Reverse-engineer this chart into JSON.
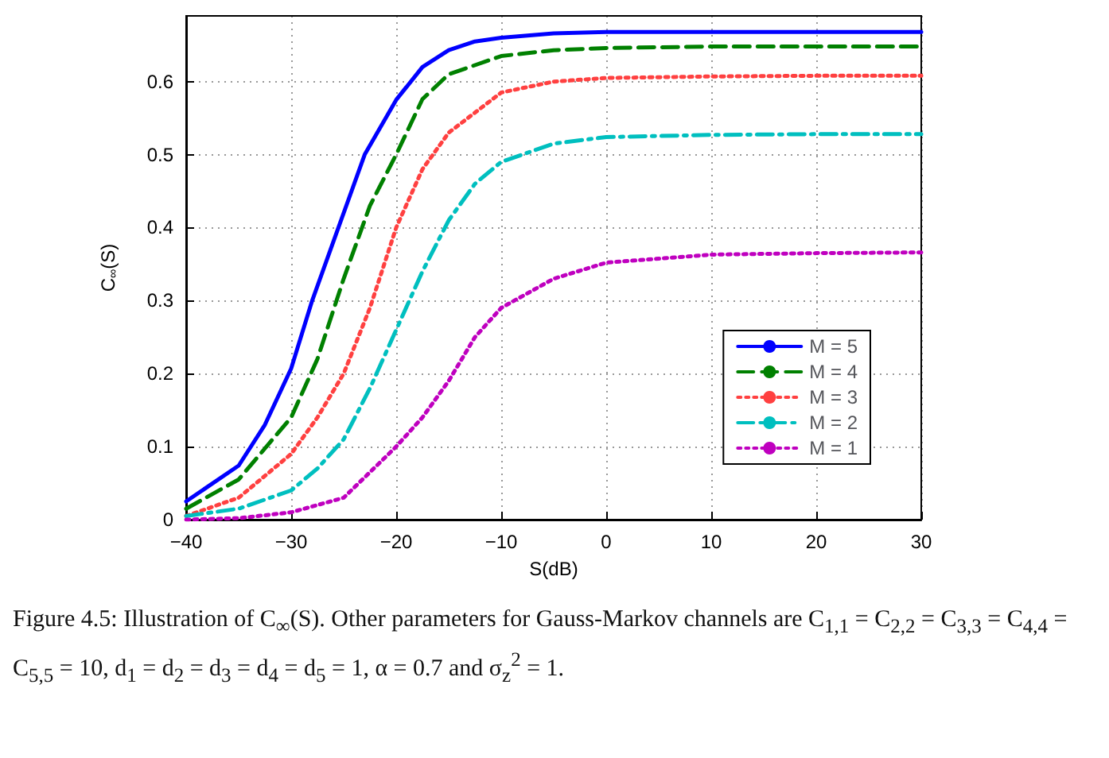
{
  "chart_data": {
    "type": "line",
    "xlabel": "S(dB)",
    "ylabel": "C$_{∞}$(S)",
    "xlim": [
      -40,
      30
    ],
    "xticks": [
      -40,
      -30,
      -20,
      -10,
      0,
      10,
      20,
      30
    ],
    "ylim": [
      0,
      0.69
    ],
    "yticks": [
      0,
      0.1,
      0.2,
      0.3,
      0.4,
      0.5,
      0.6
    ],
    "grid": true,
    "legend": "bottom right",
    "marker": "none",
    "annotations": [
      "Figure 4.5: Illustration of C$_{∞}$(S). Other parameters for Gauss-Markov channels are C$_{1,1}$ = C$_{2,2}$ = C$_{3,3}$ = C$_{4,4}$ = C$_{5,5}$ = 10, d$_{1}$ = d$_{2}$ = d$_{3}$ = d$_{4}$ = d$_{5}$ = 1, α = 0.7 and σ$_{z}$$^{2}$ = 1."
    ],
    "series": [
      {
        "name": "M = 5",
        "color": "#0000ff",
        "line_style": "solid",
        "x": [
          -40,
          -35,
          -32.5,
          -30,
          -28,
          -25.5,
          -23,
          -20,
          -17.5,
          -15,
          -12.5,
          -10,
          -5,
          0,
          10,
          20,
          30
        ],
        "values": [
          0.025,
          0.074,
          0.13,
          0.207,
          0.3,
          0.4,
          0.5,
          0.575,
          0.62,
          0.643,
          0.655,
          0.66,
          0.666,
          0.668,
          0.668,
          0.668,
          0.668
        ]
      },
      {
        "name": "M = 4",
        "color": "#008000",
        "line_style": "dashed",
        "x": [
          -40,
          -35,
          -30,
          -27.5,
          -25,
          -22.5,
          -20,
          -17.5,
          -15,
          -10,
          -5,
          0,
          10,
          20,
          30
        ],
        "values": [
          0.015,
          0.055,
          0.14,
          0.22,
          0.33,
          0.43,
          0.5,
          0.576,
          0.61,
          0.635,
          0.643,
          0.646,
          0.648,
          0.648,
          0.648
        ]
      },
      {
        "name": "M = 3",
        "color": "#ff4040",
        "line_style": "dotted",
        "x": [
          -40,
          -35,
          -30,
          -27.5,
          -25,
          -22.5,
          -20,
          -17.5,
          -15,
          -10,
          -5,
          0,
          10,
          20,
          30
        ],
        "values": [
          0.005,
          0.03,
          0.09,
          0.14,
          0.2,
          0.29,
          0.4,
          0.48,
          0.53,
          0.585,
          0.6,
          0.605,
          0.607,
          0.608,
          0.608
        ]
      },
      {
        "name": "M = 2",
        "color": "#00bfbf",
        "line_style": "dashdot",
        "x": [
          -40,
          -35,
          -30,
          -27.5,
          -25,
          -22.5,
          -20,
          -17.5,
          -15,
          -12.5,
          -10,
          -5,
          0,
          10,
          20,
          30
        ],
        "values": [
          0.005,
          0.015,
          0.04,
          0.07,
          0.11,
          0.18,
          0.26,
          0.34,
          0.41,
          0.46,
          0.49,
          0.515,
          0.524,
          0.527,
          0.528,
          0.528
        ]
      },
      {
        "name": "M = 1",
        "color": "#bf00bf",
        "line_style": "dotted",
        "x": [
          -40,
          -35,
          -30,
          -25,
          -20,
          -17.5,
          -15,
          -12.5,
          -10,
          -5,
          0,
          10,
          20,
          30
        ],
        "values": [
          0,
          0.002,
          0.01,
          0.03,
          0.1,
          0.14,
          0.19,
          0.25,
          0.29,
          0.33,
          0.352,
          0.363,
          0.365,
          0.366
        ]
      }
    ]
  }
}
